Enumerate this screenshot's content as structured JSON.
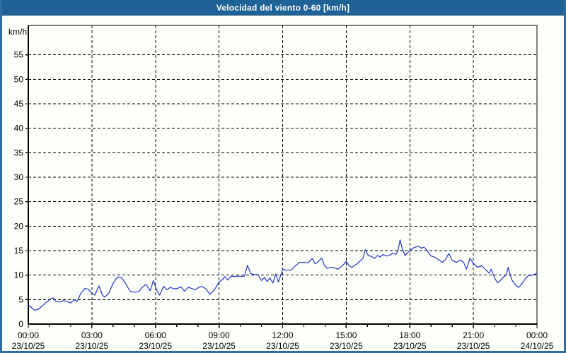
{
  "window": {
    "title": "Velocidad del viento 0-60 [km/h]"
  },
  "colors": {
    "titlebar": "#1E6296",
    "frame_border": "#2E6E9E",
    "background": "#FDFFFB",
    "line": "#2233C0",
    "grid": "#000000",
    "axis": "#000000",
    "text": "#000000"
  },
  "chart_data": {
    "type": "line",
    "title": "Velocidad del viento 0-60 [km/h]",
    "xlabel": "",
    "ylabel": "km/h",
    "ylim": [
      0,
      61
    ],
    "xlim_hours": [
      0,
      24
    ],
    "grid": true,
    "grid_style": "dashed",
    "legend": "none",
    "y_ticks": [
      0,
      5,
      10,
      15,
      20,
      25,
      30,
      35,
      40,
      45,
      50,
      55
    ],
    "minor_x_tick_every_hours": 1,
    "x_ticks": [
      {
        "hour": 0,
        "time": "00:00",
        "date": "23/10/25"
      },
      {
        "hour": 3,
        "time": "03:00",
        "date": "23/10/25"
      },
      {
        "hour": 6,
        "time": "06:00",
        "date": "23/10/25"
      },
      {
        "hour": 9,
        "time": "09:00",
        "date": "23/10/25"
      },
      {
        "hour": 12,
        "time": "12:00",
        "date": "23/10/25"
      },
      {
        "hour": 15,
        "time": "15:00",
        "date": "23/10/25"
      },
      {
        "hour": 18,
        "time": "18:00",
        "date": "23/10/25"
      },
      {
        "hour": 21,
        "time": "21:00",
        "date": "23/10/25"
      },
      {
        "hour": 24,
        "time": "00:00",
        "date": "24/10/25"
      }
    ],
    "series": [
      {
        "name": "Velocidad del viento",
        "units": "km/h",
        "points": [
          [
            0.0,
            3.9
          ],
          [
            0.17,
            3.3
          ],
          [
            0.3,
            2.8
          ],
          [
            0.5,
            3.1
          ],
          [
            0.73,
            4.0
          ],
          [
            1.0,
            5.0
          ],
          [
            1.17,
            5.4
          ],
          [
            1.3,
            4.6
          ],
          [
            1.5,
            4.5
          ],
          [
            1.67,
            4.8
          ],
          [
            1.83,
            4.6
          ],
          [
            2.0,
            4.3
          ],
          [
            2.17,
            5.0
          ],
          [
            2.3,
            4.6
          ],
          [
            2.47,
            6.2
          ],
          [
            2.67,
            7.3
          ],
          [
            2.83,
            7.1
          ],
          [
            3.0,
            6.3
          ],
          [
            3.14,
            5.9
          ],
          [
            3.33,
            7.8
          ],
          [
            3.5,
            5.9
          ],
          [
            3.6,
            5.5
          ],
          [
            3.8,
            6.3
          ],
          [
            4.0,
            8.3
          ],
          [
            4.2,
            9.6
          ],
          [
            4.4,
            9.5
          ],
          [
            4.6,
            8.2
          ],
          [
            4.8,
            6.7
          ],
          [
            5.0,
            6.5
          ],
          [
            5.2,
            6.6
          ],
          [
            5.4,
            7.6
          ],
          [
            5.55,
            8.1
          ],
          [
            5.75,
            6.8
          ],
          [
            5.9,
            8.9
          ],
          [
            6.07,
            6.8
          ],
          [
            6.2,
            5.9
          ],
          [
            6.38,
            7.7
          ],
          [
            6.54,
            7.0
          ],
          [
            6.7,
            7.5
          ],
          [
            6.87,
            7.2
          ],
          [
            7.04,
            7.3
          ],
          [
            7.2,
            7.6
          ],
          [
            7.37,
            6.7
          ],
          [
            7.54,
            7.5
          ],
          [
            7.7,
            7.3
          ],
          [
            7.87,
            7.0
          ],
          [
            8.04,
            7.5
          ],
          [
            8.2,
            7.7
          ],
          [
            8.37,
            7.2
          ],
          [
            8.57,
            6.1
          ],
          [
            8.77,
            6.9
          ],
          [
            9.0,
            8.6
          ],
          [
            9.14,
            9.0
          ],
          [
            9.28,
            9.7
          ],
          [
            9.4,
            9.0
          ],
          [
            9.57,
            9.8
          ],
          [
            9.74,
            9.7
          ],
          [
            9.9,
            9.8
          ],
          [
            10.07,
            9.7
          ],
          [
            10.2,
            9.8
          ],
          [
            10.34,
            12.0
          ],
          [
            10.5,
            10.3
          ],
          [
            10.67,
            10.1
          ],
          [
            10.84,
            10.1
          ],
          [
            11.0,
            8.9
          ],
          [
            11.14,
            9.5
          ],
          [
            11.27,
            8.7
          ],
          [
            11.4,
            9.4
          ],
          [
            11.54,
            8.4
          ],
          [
            11.67,
            10.2
          ],
          [
            11.8,
            8.6
          ],
          [
            12.0,
            11.2
          ],
          [
            12.2,
            11.0
          ],
          [
            12.4,
            11.0
          ],
          [
            12.6,
            11.9
          ],
          [
            12.8,
            12.6
          ],
          [
            13.0,
            12.6
          ],
          [
            13.2,
            12.5
          ],
          [
            13.4,
            13.4
          ],
          [
            13.54,
            12.3
          ],
          [
            13.67,
            12.7
          ],
          [
            13.84,
            13.5
          ],
          [
            13.97,
            12.0
          ],
          [
            14.1,
            11.4
          ],
          [
            14.27,
            11.6
          ],
          [
            14.44,
            11.5
          ],
          [
            14.6,
            11.2
          ],
          [
            14.8,
            11.8
          ],
          [
            15.0,
            12.8
          ],
          [
            15.14,
            11.9
          ],
          [
            15.27,
            11.6
          ],
          [
            15.47,
            12.2
          ],
          [
            15.67,
            12.9
          ],
          [
            15.8,
            13.5
          ],
          [
            15.9,
            15.2
          ],
          [
            16.04,
            14.0
          ],
          [
            16.2,
            13.8
          ],
          [
            16.34,
            13.4
          ],
          [
            16.47,
            14.0
          ],
          [
            16.6,
            13.7
          ],
          [
            16.74,
            14.2
          ],
          [
            16.9,
            13.9
          ],
          [
            17.07,
            14.1
          ],
          [
            17.2,
            14.5
          ],
          [
            17.34,
            14.2
          ],
          [
            17.44,
            15.0
          ],
          [
            17.54,
            17.2
          ],
          [
            17.64,
            15.4
          ],
          [
            17.77,
            14.0
          ],
          [
            17.9,
            14.6
          ],
          [
            18.0,
            15.0
          ],
          [
            18.2,
            15.6
          ],
          [
            18.4,
            15.9
          ],
          [
            18.54,
            15.5
          ],
          [
            18.67,
            15.7
          ],
          [
            18.84,
            14.9
          ],
          [
            19.0,
            13.9
          ],
          [
            19.2,
            13.6
          ],
          [
            19.4,
            13.0
          ],
          [
            19.54,
            12.6
          ],
          [
            19.67,
            13.1
          ],
          [
            19.84,
            14.4
          ],
          [
            20.0,
            13.0
          ],
          [
            20.2,
            12.6
          ],
          [
            20.4,
            13.1
          ],
          [
            20.54,
            12.6
          ],
          [
            20.67,
            11.2
          ],
          [
            20.84,
            13.4
          ],
          [
            21.0,
            12.4
          ],
          [
            21.2,
            11.6
          ],
          [
            21.4,
            11.9
          ],
          [
            21.6,
            11.0
          ],
          [
            21.74,
            10.4
          ],
          [
            21.84,
            11.2
          ],
          [
            22.0,
            9.4
          ],
          [
            22.14,
            8.4
          ],
          [
            22.27,
            8.9
          ],
          [
            22.44,
            9.7
          ],
          [
            22.54,
            10.0
          ],
          [
            22.64,
            11.6
          ],
          [
            22.8,
            9.1
          ],
          [
            23.0,
            7.9
          ],
          [
            23.14,
            7.5
          ],
          [
            23.27,
            8.1
          ],
          [
            23.44,
            9.2
          ],
          [
            23.6,
            9.9
          ],
          [
            23.8,
            10.0
          ],
          [
            24.0,
            10.4
          ]
        ]
      }
    ]
  }
}
